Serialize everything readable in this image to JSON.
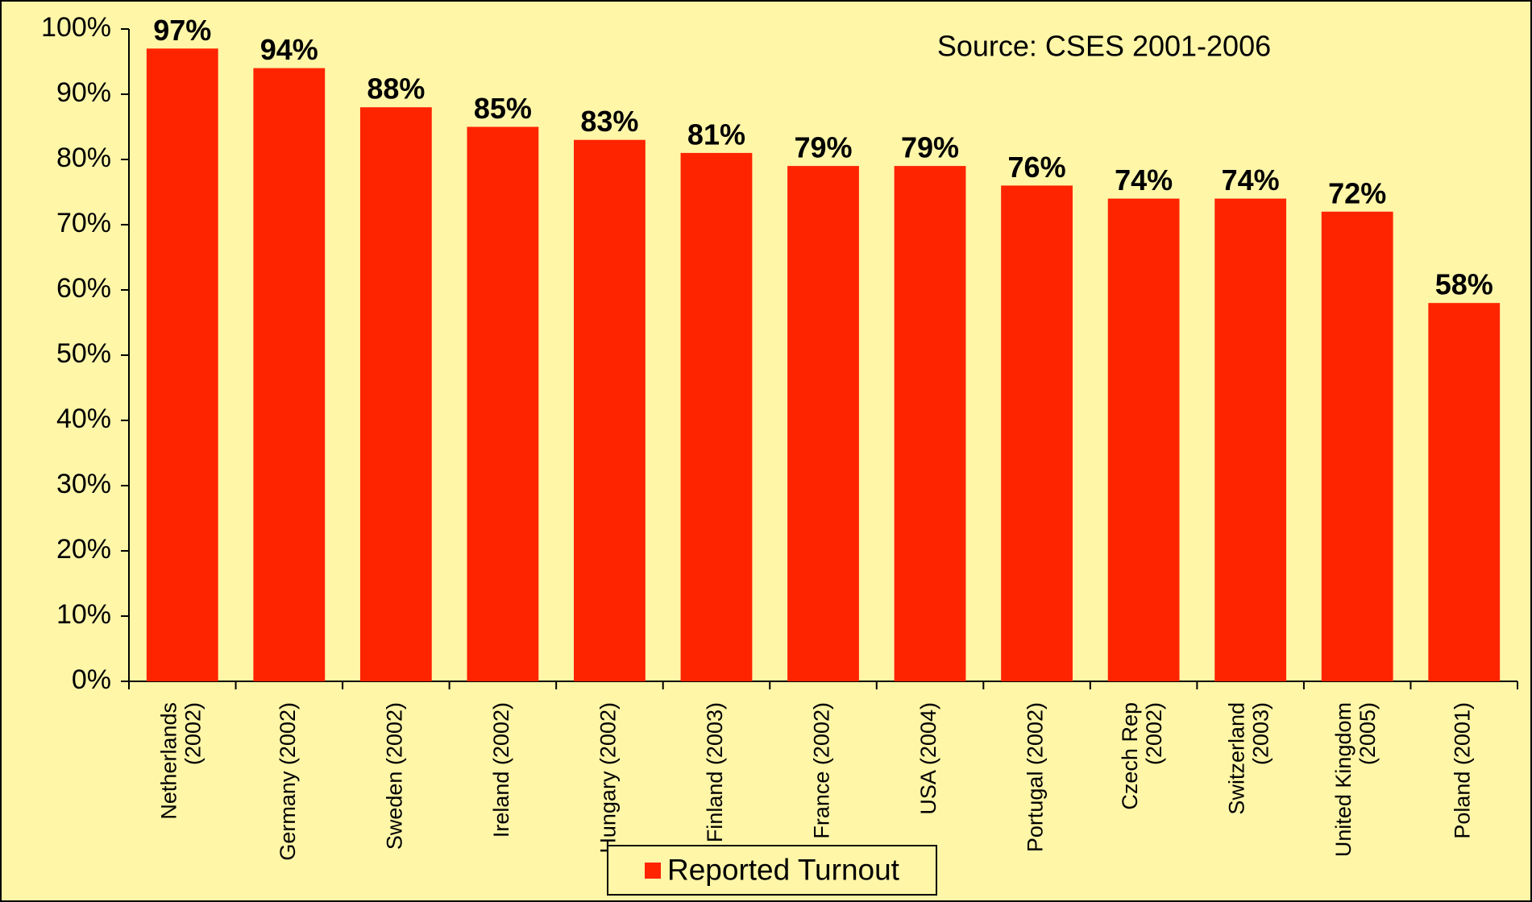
{
  "chart_data": {
    "type": "bar",
    "annotation": "Source: CSES 2001-2006",
    "categories": [
      "Netherlands (2002)",
      "Germany (2002)",
      "Sweden (2002)",
      "Ireland (2002)",
      "Hungary (2002)",
      "Finland (2003)",
      "France (2002)",
      "USA (2004)",
      "Portugal (2002)",
      "Czech Rep (2002)",
      "Switzerland (2003)",
      "United Kingdom (2005)",
      "Poland (2001)"
    ],
    "series": [
      {
        "name": "Reported Turnout",
        "color": "#ff2400",
        "values": [
          97,
          94,
          88,
          85,
          83,
          81,
          79,
          79,
          76,
          74,
          74,
          72,
          58
        ],
        "value_labels": [
          "97%",
          "94%",
          "88%",
          "85%",
          "83%",
          "81%",
          "79%",
          "79%",
          "76%",
          "74%",
          "74%",
          "72%",
          "58%"
        ]
      }
    ],
    "ylim": [
      0,
      100
    ],
    "yticks": [
      {
        "value": 0,
        "label": "0%"
      },
      {
        "value": 10,
        "label": "10%"
      },
      {
        "value": 20,
        "label": "20%"
      },
      {
        "value": 30,
        "label": "30%"
      },
      {
        "value": 40,
        "label": "40%"
      },
      {
        "value": 50,
        "label": "50%"
      },
      {
        "value": 60,
        "label": "60%"
      },
      {
        "value": 70,
        "label": "70%"
      },
      {
        "value": 80,
        "label": "80%"
      },
      {
        "value": 90,
        "label": "90%"
      },
      {
        "value": 100,
        "label": "100%"
      }
    ],
    "grid": false,
    "legend": "bottom"
  }
}
